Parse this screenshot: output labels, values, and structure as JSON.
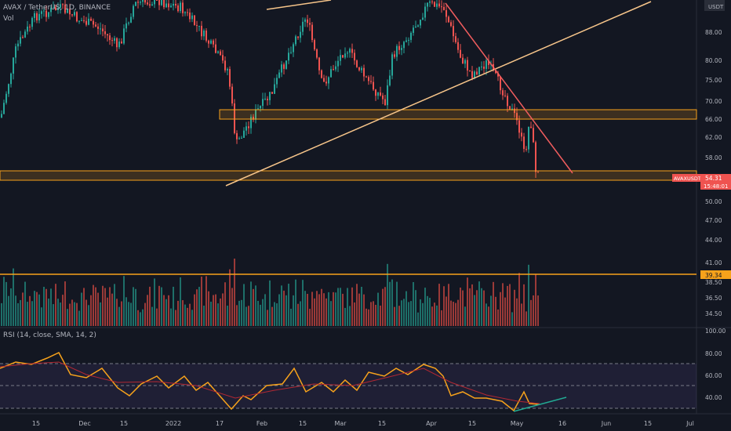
{
  "header": {
    "symbol_line": "AVAX / TetherUS, 1D, BINANCE",
    "vol_label": "Vol"
  },
  "price_axis": {
    "currency": "USDT",
    "ticks": [
      "88.00",
      "80.00",
      "75.00",
      "70.00",
      "66.00",
      "62.00",
      "58.00",
      "50.00",
      "47.00",
      "44.00",
      "41.00",
      "38.50",
      "36.50",
      "34.50"
    ],
    "current_label": "AVAXUSDT",
    "current_price": "54.31",
    "countdown": "15:48:01",
    "level_label": "39.34"
  },
  "rsi": {
    "title": "RSI (14, close, SMA, 14, 2)",
    "ticks": [
      "100.00",
      "80.00",
      "60.00",
      "40.00"
    ]
  },
  "time_axis": {
    "labels": [
      "15",
      "Dec",
      "15",
      "2022",
      "17",
      "Feb",
      "15",
      "Mar",
      "15",
      "Apr",
      "15",
      "May",
      "16",
      "Jun",
      "15",
      "Jul"
    ]
  },
  "colors": {
    "bg": "#131722",
    "up": "#26a69a",
    "down": "#ef5350",
    "orange": "#f7a21b",
    "trend": "#f7c58a",
    "grid": "#1e222d"
  }
}
